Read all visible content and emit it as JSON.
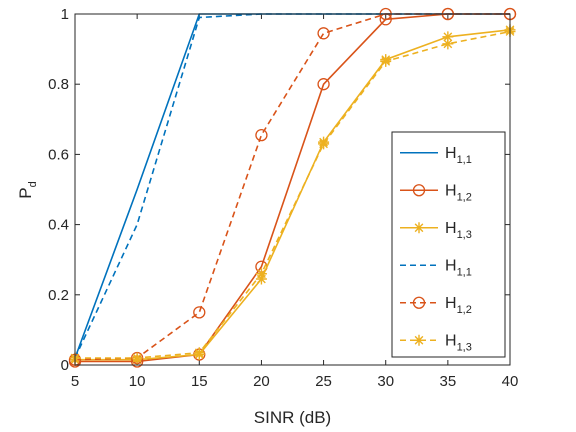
{
  "chart_data": {
    "type": "line",
    "xlabel": "SINR (dB)",
    "ylabel": "P",
    "ylabel_sub": "d",
    "xlim": [
      5,
      40
    ],
    "ylim": [
      0,
      1
    ],
    "xticks": [
      "5",
      "10",
      "15",
      "20",
      "25",
      "30",
      "35",
      "40"
    ],
    "yticks": [
      "0",
      "0.2",
      "0.4",
      "0.6",
      "0.8",
      "1"
    ],
    "grid": false,
    "legend_position": "lower-right",
    "x": [
      5,
      10,
      15,
      20,
      25,
      30,
      35,
      40
    ],
    "series": [
      {
        "name": "H",
        "sub": "1,1",
        "color": "#0072BD",
        "linestyle": "solid",
        "marker": "none",
        "values": [
          0.02,
          0.5,
          1.0,
          1.0,
          1.0,
          1.0,
          1.0,
          1.0
        ]
      },
      {
        "name": "H",
        "sub": "1,2",
        "color": "#D95319",
        "linestyle": "solid",
        "marker": "circle",
        "values": [
          0.01,
          0.01,
          0.03,
          0.28,
          0.8,
          0.985,
          1.0,
          1.0
        ]
      },
      {
        "name": "H",
        "sub": "1,3",
        "color": "#EDB120",
        "linestyle": "solid",
        "marker": "star",
        "values": [
          0.015,
          0.015,
          0.03,
          0.245,
          0.635,
          0.87,
          0.935,
          0.955
        ]
      },
      {
        "name": "H",
        "sub": "1,1",
        "color": "#0072BD",
        "linestyle": "dashed",
        "marker": "none",
        "values": [
          0.02,
          0.4,
          0.99,
          1.0,
          1.0,
          1.0,
          1.0,
          1.0
        ]
      },
      {
        "name": "H",
        "sub": "1,2",
        "color": "#D95319",
        "linestyle": "dashed",
        "marker": "circle",
        "values": [
          0.015,
          0.02,
          0.15,
          0.655,
          0.945,
          1.0,
          1.0,
          1.0
        ]
      },
      {
        "name": "H",
        "sub": "1,3",
        "color": "#EDB120",
        "linestyle": "dashed",
        "marker": "star",
        "values": [
          0.02,
          0.02,
          0.035,
          0.26,
          0.63,
          0.865,
          0.915,
          0.95
        ]
      }
    ]
  }
}
